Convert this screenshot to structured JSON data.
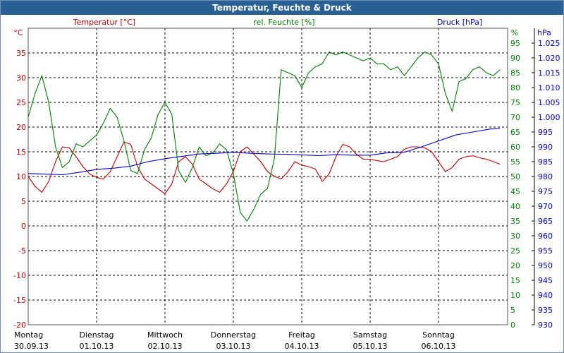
{
  "title": "Temperatur, Feuchte & Druck",
  "chart_data": {
    "type": "line",
    "title": "Temperatur, Feuchte & Druck",
    "x": {
      "days": [
        {
          "day": "Montag",
          "date": "30.09.13"
        },
        {
          "day": "Dienstag",
          "date": "01.10.13"
        },
        {
          "day": "Mittwoch",
          "date": "02.10.13"
        },
        {
          "day": "Donnerstag",
          "date": "03.10.13"
        },
        {
          "day": "Freitag",
          "date": "04.10.13"
        },
        {
          "day": "Samstag",
          "date": "05.10.13"
        },
        {
          "day": "Sonntag",
          "date": "06.10.13"
        }
      ]
    },
    "axes": {
      "temperature": {
        "label": "Temperatur [°C]",
        "unit": "°C",
        "min": -20,
        "max": 40,
        "ticks": [
          -20,
          -15,
          -10,
          -5,
          0,
          5,
          10,
          15,
          20,
          25,
          30,
          35
        ],
        "color": "#c00000"
      },
      "humidity": {
        "label": "rel. Feuchte [%]",
        "unit": "%",
        "min": 0,
        "max": 100,
        "ticks": [
          0,
          5,
          10,
          15,
          20,
          25,
          30,
          35,
          40,
          45,
          50,
          55,
          60,
          65,
          70,
          75,
          80,
          85,
          90,
          95
        ],
        "color": "#008000"
      },
      "pressure": {
        "label": "Druck [hPa]",
        "unit": "hPa",
        "min": 930,
        "max": 1030,
        "ticks": [
          930,
          935,
          940,
          945,
          950,
          955,
          960,
          965,
          970,
          975,
          980,
          985,
          990,
          995,
          1000,
          1005,
          1010,
          1015,
          1020,
          1025
        ],
        "tick_labels": [
          "930",
          "935",
          "940",
          "945",
          "950",
          "955",
          "960",
          "965",
          "970",
          "975",
          "980",
          "985",
          "990",
          "995",
          "1.000",
          "1.005",
          "1.010",
          "1.015",
          "1.020",
          "1.025"
        ],
        "color": "#0000c0"
      }
    },
    "grid": true,
    "series": [
      {
        "name": "Temperatur [°C]",
        "axis": "temperature",
        "color": "#c00000",
        "x": [
          0,
          0.1,
          0.2,
          0.3,
          0.4,
          0.5,
          0.6,
          0.7,
          0.8,
          0.9,
          1.0,
          1.1,
          1.2,
          1.3,
          1.4,
          1.5,
          1.6,
          1.7,
          1.8,
          1.9,
          2.0,
          2.1,
          2.2,
          2.3,
          2.4,
          2.5,
          2.6,
          2.7,
          2.8,
          2.9,
          3.0,
          3.1,
          3.2,
          3.3,
          3.4,
          3.5,
          3.6,
          3.7,
          3.8,
          3.9,
          4.0,
          4.1,
          4.2,
          4.3,
          4.4,
          4.5,
          4.6,
          4.7,
          4.8,
          4.9,
          5.0,
          5.1,
          5.2,
          5.3,
          5.4,
          5.5,
          5.6,
          5.7,
          5.8,
          5.9,
          6.0,
          6.1,
          6.2,
          6.3,
          6.4,
          6.5,
          6.6,
          6.7,
          6.8,
          6.9
        ],
        "values": [
          10,
          8,
          6.8,
          9,
          13,
          16,
          15.8,
          14,
          12,
          10.5,
          9.8,
          9.5,
          11,
          14,
          17,
          16.5,
          12,
          9.5,
          8.5,
          7.5,
          6.5,
          8.5,
          13,
          14,
          12.5,
          9.5,
          8.5,
          7.5,
          6.8,
          8.5,
          11,
          15,
          16,
          14.5,
          13,
          11,
          10,
          9.5,
          11,
          13,
          12.3,
          12,
          11.5,
          9,
          10.5,
          14,
          16.5,
          16,
          14.5,
          13.5,
          13.5,
          13.2,
          13,
          13.5,
          14,
          15.5,
          16,
          16,
          15.8,
          15,
          13,
          11,
          11.8,
          13.5,
          14,
          14.2,
          13.8,
          13.5,
          13,
          12.5
        ]
      },
      {
        "name": "rel. Feuchte [%]",
        "axis": "humidity",
        "color": "#008000",
        "x": [
          0,
          0.1,
          0.2,
          0.3,
          0.4,
          0.5,
          0.6,
          0.7,
          0.8,
          0.9,
          1.0,
          1.1,
          1.2,
          1.3,
          1.4,
          1.5,
          1.6,
          1.7,
          1.8,
          1.9,
          2.0,
          2.1,
          2.2,
          2.3,
          2.4,
          2.5,
          2.6,
          2.7,
          2.8,
          2.9,
          3.0,
          3.1,
          3.2,
          3.3,
          3.4,
          3.5,
          3.6,
          3.7,
          3.8,
          3.9,
          4.0,
          4.1,
          4.2,
          4.3,
          4.4,
          4.5,
          4.6,
          4.7,
          4.8,
          4.9,
          5.0,
          5.1,
          5.2,
          5.3,
          5.4,
          5.5,
          5.6,
          5.7,
          5.8,
          5.9,
          6.0,
          6.1,
          6.2,
          6.3,
          6.4,
          6.5,
          6.6,
          6.7,
          6.8,
          6.9
        ],
        "values": [
          70,
          78,
          84,
          75,
          60,
          53,
          55,
          61,
          60,
          62,
          64,
          68,
          73,
          70,
          62,
          52,
          51,
          59,
          63,
          71,
          75,
          71,
          52,
          48,
          53,
          60,
          57,
          58,
          61,
          59,
          51,
          38,
          35,
          39,
          44,
          46,
          56,
          86,
          85,
          84,
          80,
          85,
          87,
          88,
          92,
          91,
          92,
          91,
          90,
          89,
          90,
          88,
          88,
          86,
          87,
          84,
          87,
          90,
          92,
          91,
          88,
          78,
          72,
          82,
          83,
          86,
          87,
          85,
          84,
          86
        ]
      },
      {
        "name": "Druck [hPa]",
        "axis": "pressure",
        "color": "#0000c0",
        "x": [
          0,
          0.25,
          0.5,
          0.75,
          1.0,
          1.25,
          1.5,
          1.75,
          2.0,
          2.25,
          2.5,
          2.75,
          3.0,
          3.25,
          3.5,
          3.75,
          4.0,
          4.25,
          4.5,
          4.75,
          5.0,
          5.25,
          5.5,
          5.75,
          6.0,
          6.25,
          6.5,
          6.75,
          6.9
        ],
        "values": [
          981,
          980.8,
          980.6,
          981.4,
          982.4,
          982.8,
          983.5,
          985,
          986,
          986.8,
          987.6,
          987.8,
          988.2,
          987.8,
          987.6,
          987.5,
          987.3,
          987,
          987.4,
          987.2,
          987.2,
          988,
          988.2,
          990,
          992,
          994,
          995,
          996,
          996.2
        ]
      }
    ]
  }
}
